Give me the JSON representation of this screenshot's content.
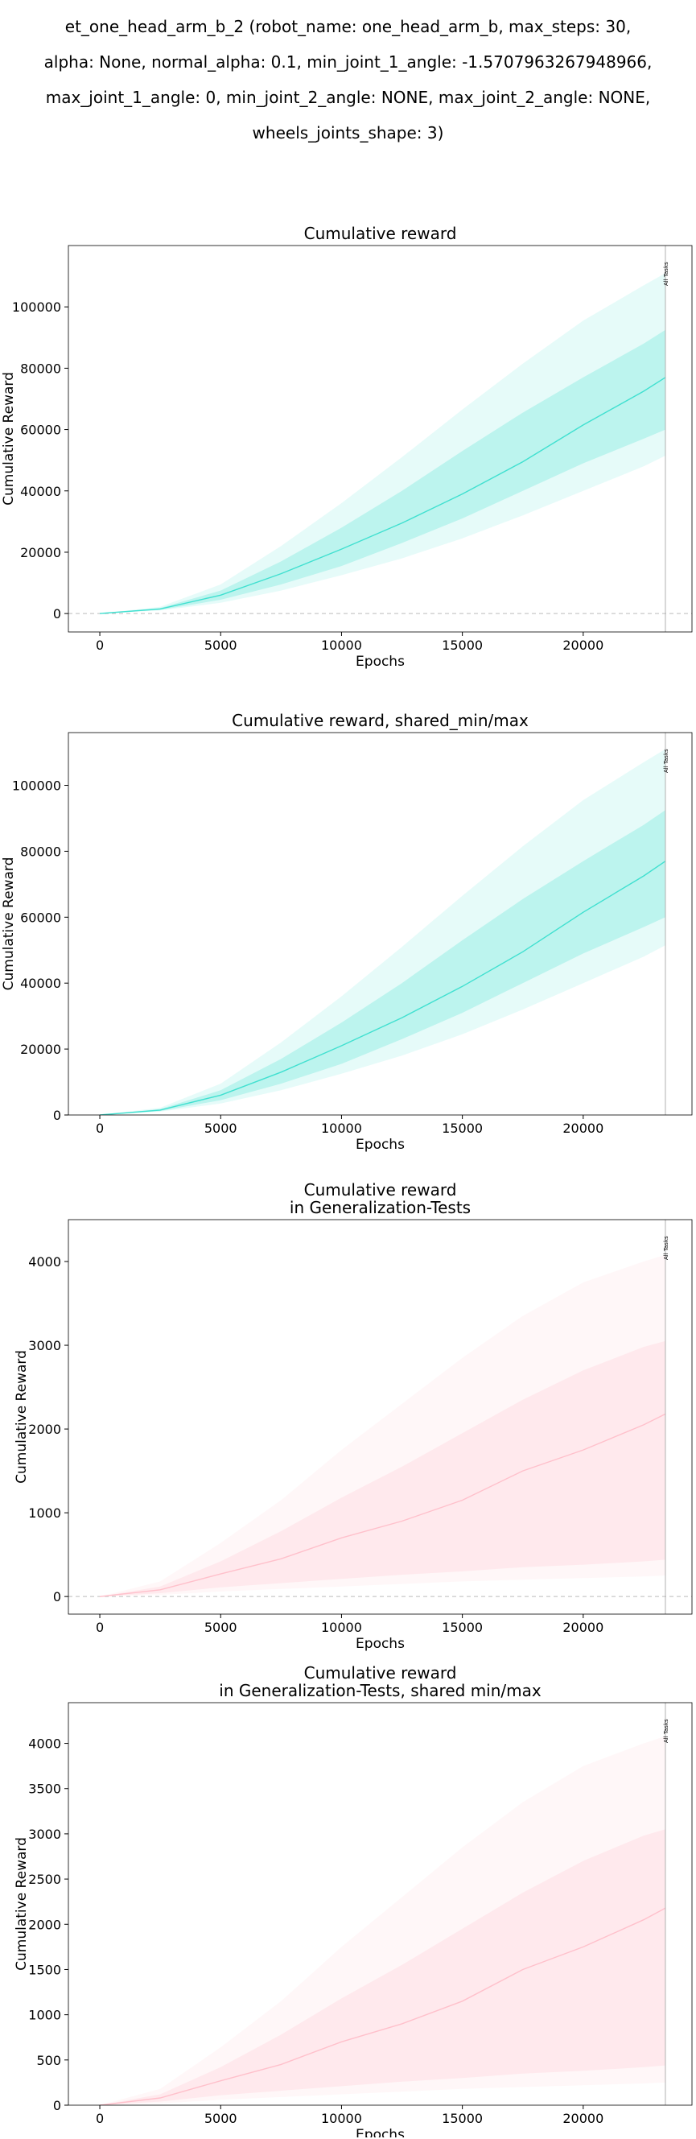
{
  "figure": {
    "suptitle_lines": [
      "et_one_head_arm_b_2 (robot_name: one_head_arm_b, max_steps: 30,",
      "alpha: None, normal_alpha: 0.1, min_joint_1_angle: -1.5707963267948966,",
      "max_joint_1_angle: 0, min_joint_2_angle: NONE, max_joint_2_angle: NONE,",
      "wheels_joints_shape: 3)"
    ]
  },
  "chart_data": [
    {
      "type": "line",
      "title": "Cumulative reward",
      "xlabel": "Epochs",
      "ylabel": "Cumulative Reward",
      "xlim": [
        -1300,
        24500
      ],
      "ylim": [
        -6000,
        120000
      ],
      "xticks": [
        0,
        5000,
        10000,
        15000,
        20000
      ],
      "yticks": [
        0,
        20000,
        40000,
        60000,
        80000,
        100000
      ],
      "zero_line": true,
      "grid": false,
      "color": "#40e0d0",
      "vline": {
        "x": 23400,
        "label": "All Tasks"
      },
      "x": [
        0,
        2500,
        5000,
        7500,
        10000,
        12500,
        15000,
        17500,
        20000,
        22500,
        23400
      ],
      "series": [
        {
          "values": [
            0,
            1500,
            6000,
            13000,
            21000,
            29500,
            39000,
            49500,
            61500,
            72500,
            77000
          ]
        }
      ],
      "band_inner": {
        "lower": [
          0,
          1200,
          4500,
          9500,
          15500,
          23000,
          31000,
          40000,
          49000,
          57000,
          60000
        ],
        "upper": [
          0,
          1800,
          7500,
          17000,
          28000,
          40000,
          53000,
          65500,
          77000,
          88000,
          92500
        ]
      },
      "band_outer": {
        "lower": [
          0,
          1000,
          3500,
          7500,
          12500,
          18000,
          24500,
          32000,
          40000,
          48000,
          51500
        ],
        "upper": [
          0,
          2200,
          9500,
          22000,
          36000,
          51000,
          66500,
          81500,
          95500,
          107000,
          111000
        ]
      }
    },
    {
      "type": "line",
      "title": "Cumulative reward, shared_min/max",
      "xlabel": "Epochs",
      "ylabel": "Cumulative Reward",
      "xlim": [
        -1300,
        24500
      ],
      "ylim": [
        0,
        116000
      ],
      "xticks": [
        0,
        5000,
        10000,
        15000,
        20000
      ],
      "yticks": [
        0,
        20000,
        40000,
        60000,
        80000,
        100000
      ],
      "zero_line": false,
      "grid": false,
      "color": "#40e0d0",
      "vline": {
        "x": 23400,
        "label": "All Tasks"
      },
      "x": [
        0,
        2500,
        5000,
        7500,
        10000,
        12500,
        15000,
        17500,
        20000,
        22500,
        23400
      ],
      "series": [
        {
          "values": [
            0,
            1500,
            6000,
            13000,
            21000,
            29500,
            39000,
            49500,
            61500,
            72500,
            77000
          ]
        }
      ],
      "band_inner": {
        "lower": [
          0,
          1200,
          4500,
          9500,
          15500,
          23000,
          31000,
          40000,
          49000,
          57000,
          60000
        ],
        "upper": [
          0,
          1800,
          7500,
          17000,
          28000,
          40000,
          53000,
          65500,
          77000,
          88000,
          92500
        ]
      },
      "band_outer": {
        "lower": [
          0,
          1000,
          3500,
          7500,
          12500,
          18000,
          24500,
          32000,
          40000,
          48000,
          51500
        ],
        "upper": [
          0,
          2200,
          9500,
          22000,
          36000,
          51000,
          66500,
          81500,
          95500,
          107000,
          111000
        ]
      }
    },
    {
      "type": "line",
      "title": "Cumulative reward\nin Generalization-Tests",
      "xlabel": "Epochs",
      "ylabel": "Cumulative Reward",
      "xlim": [
        -1300,
        24500
      ],
      "ylim": [
        -210,
        4500
      ],
      "xticks": [
        0,
        5000,
        10000,
        15000,
        20000
      ],
      "yticks": [
        0,
        1000,
        2000,
        3000,
        4000
      ],
      "zero_line": true,
      "grid": false,
      "color": "#ffc0cb",
      "vline": {
        "x": 23400,
        "label": "All Tasks"
      },
      "x": [
        0,
        2500,
        5000,
        7500,
        10000,
        12500,
        15000,
        17500,
        20000,
        22500,
        23400
      ],
      "series": [
        {
          "values": [
            0,
            80,
            270,
            450,
            700,
            900,
            1150,
            1500,
            1750,
            2050,
            2180
          ]
        }
      ],
      "band_inner": {
        "lower": [
          0,
          40,
          110,
          160,
          210,
          260,
          300,
          350,
          380,
          420,
          440
        ],
        "upper": [
          0,
          120,
          420,
          780,
          1180,
          1550,
          1950,
          2350,
          2700,
          2980,
          3050
        ]
      },
      "band_outer": {
        "lower": [
          0,
          20,
          60,
          90,
          120,
          150,
          180,
          200,
          220,
          240,
          250
        ],
        "upper": [
          0,
          180,
          640,
          1150,
          1750,
          2300,
          2850,
          3350,
          3750,
          4000,
          4080
        ]
      }
    },
    {
      "type": "line",
      "title": "Cumulative reward\nin Generalization-Tests, shared min/max",
      "xlabel": "Epochs",
      "ylabel": "Cumulative Reward",
      "xlim": [
        -1300,
        24500
      ],
      "ylim": [
        0,
        4450
      ],
      "xticks": [
        0,
        5000,
        10000,
        15000,
        20000
      ],
      "yticks": [
        0,
        500,
        1000,
        1500,
        2000,
        2500,
        3000,
        3500,
        4000
      ],
      "zero_line": false,
      "grid": false,
      "color": "#ffc0cb",
      "vline": {
        "x": 23400,
        "label": "All Tasks"
      },
      "x": [
        0,
        2500,
        5000,
        7500,
        10000,
        12500,
        15000,
        17500,
        20000,
        22500,
        23400
      ],
      "series": [
        {
          "values": [
            0,
            80,
            270,
            450,
            700,
            900,
            1150,
            1500,
            1750,
            2050,
            2180
          ]
        }
      ],
      "band_inner": {
        "lower": [
          0,
          40,
          110,
          160,
          210,
          260,
          300,
          350,
          380,
          420,
          440
        ],
        "upper": [
          0,
          120,
          420,
          780,
          1180,
          1550,
          1950,
          2350,
          2700,
          2980,
          3050
        ]
      },
      "band_outer": {
        "lower": [
          0,
          20,
          60,
          90,
          120,
          150,
          180,
          200,
          220,
          240,
          250
        ],
        "upper": [
          0,
          180,
          640,
          1150,
          1750,
          2300,
          2850,
          3350,
          3750,
          4000,
          4080
        ]
      }
    }
  ]
}
